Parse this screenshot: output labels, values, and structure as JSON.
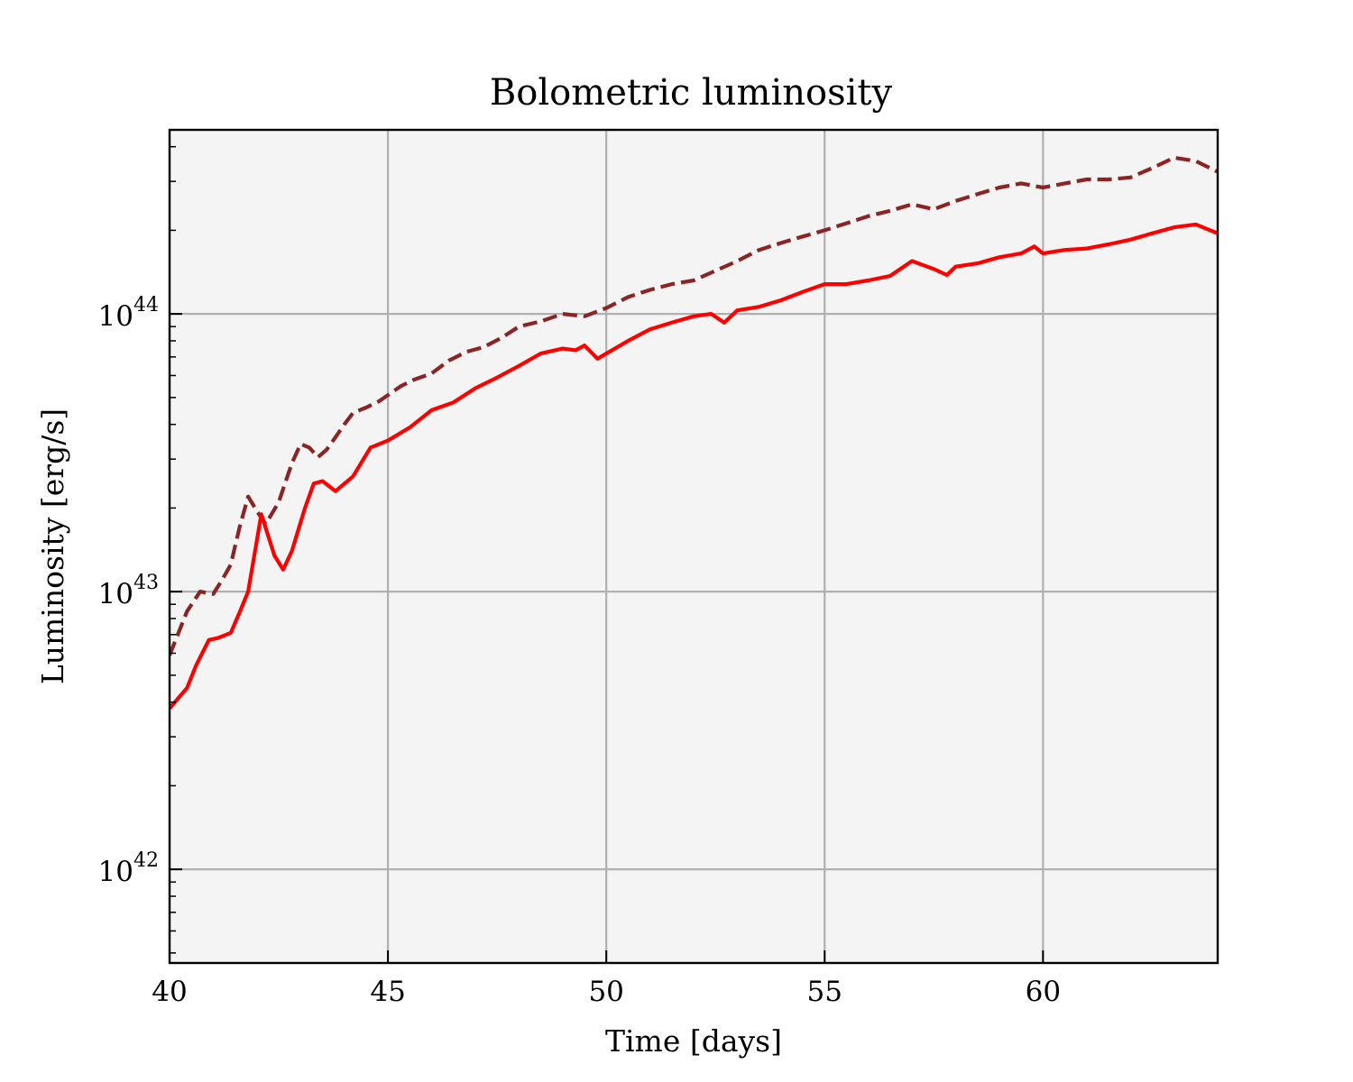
{
  "chart_data": {
    "type": "line",
    "title": "Bolometric luminosity",
    "xlabel": "Time [days]",
    "ylabel": "Luminosity [erg/s]",
    "xlim": [
      40,
      64
    ],
    "ylim": [
      4.6e+41,
      4.6e+44
    ],
    "yscale": "log",
    "grid": true,
    "x_ticks": [
      {
        "value": 40,
        "label": "40"
      },
      {
        "value": 45,
        "label": "45"
      },
      {
        "value": 50,
        "label": "50"
      },
      {
        "value": 55,
        "label": "55"
      },
      {
        "value": 60,
        "label": "60"
      }
    ],
    "y_ticks": [
      {
        "value": 1e+42,
        "base": "10",
        "exp": "42"
      },
      {
        "value": 1e+43,
        "base": "10",
        "exp": "43"
      },
      {
        "value": 1e+44,
        "base": "10",
        "exp": "44"
      }
    ],
    "colors": {
      "plot_background": "#f4f4f4",
      "grid": "#b0b0b0"
    },
    "series": [
      {
        "color": "#8b2525",
        "linestyle": "dashed",
        "x": [
          40,
          40.4,
          40.7,
          41,
          41.2,
          41.4,
          41.6,
          41.8,
          42,
          42.2,
          42.5,
          42.8,
          43,
          43.2,
          43.4,
          43.6,
          43.8,
          44,
          44.2,
          44.5,
          44.8,
          45,
          45.3,
          45.6,
          46,
          46.4,
          46.8,
          47.2,
          47.6,
          48,
          48.5,
          49,
          49.5,
          50,
          50.5,
          51,
          51.5,
          52,
          52.5,
          53,
          53.5,
          54,
          54.5,
          55,
          55.5,
          56,
          56.5,
          57,
          57.5,
          58,
          58.5,
          59,
          59.5,
          60,
          60.5,
          61,
          61.5,
          62,
          62.5,
          63,
          63.5,
          64
        ],
        "y": [
          5.9e+42,
          8.5e+42,
          1e+43,
          9.8e+42,
          1.1e+43,
          1.25e+43,
          1.7e+43,
          2.2e+43,
          1.95e+43,
          1.75e+43,
          2.1e+43,
          2.9e+43,
          3.4e+43,
          3.3e+43,
          3.05e+43,
          3.25e+43,
          3.6e+43,
          4e+43,
          4.4e+43,
          4.6e+43,
          4.85e+43,
          5.1e+43,
          5.5e+43,
          5.8e+43,
          6.1e+43,
          6.8e+43,
          7.3e+43,
          7.6e+43,
          8.2e+43,
          9e+43,
          9.4e+43,
          1e+44,
          9.8e+43,
          1.05e+44,
          1.15e+44,
          1.22e+44,
          1.28e+44,
          1.32e+44,
          1.43e+44,
          1.55e+44,
          1.7e+44,
          1.8e+44,
          1.9e+44,
          2e+44,
          2.12e+44,
          2.25e+44,
          2.35e+44,
          2.48e+44,
          2.38e+44,
          2.55e+44,
          2.7e+44,
          2.85e+44,
          2.95e+44,
          2.85e+44,
          2.95e+44,
          3.05e+44,
          3.05e+44,
          3.1e+44,
          3.35e+44,
          3.65e+44,
          3.55e+44,
          3.25e+44
        ]
      },
      {
        "color": "#ff0000",
        "linestyle": "solid",
        "x": [
          40,
          40.4,
          40.6,
          40.9,
          41.1,
          41.4,
          41.6,
          41.8,
          42.1,
          42.4,
          42.6,
          42.8,
          43.1,
          43.3,
          43.5,
          43.8,
          44.2,
          44.6,
          45,
          45.5,
          46,
          46.5,
          47,
          47.5,
          48,
          48.5,
          49,
          49.3,
          49.5,
          49.8,
          50,
          50.5,
          51,
          51.5,
          52,
          52.4,
          52.7,
          53,
          53.5,
          54,
          54.5,
          55,
          55.5,
          56,
          56.5,
          57,
          57.5,
          57.8,
          58,
          58.5,
          59,
          59.5,
          59.8,
          60,
          60.5,
          61,
          61.5,
          62,
          62.5,
          63,
          63.5,
          64
        ],
        "y": [
          3.8e+42,
          4.5e+42,
          5.4e+42,
          6.7e+42,
          6.8e+42,
          7.1e+42,
          8.4e+42,
          1e+43,
          1.9e+43,
          1.35e+43,
          1.2e+43,
          1.4e+43,
          2e+43,
          2.45e+43,
          2.5e+43,
          2.3e+43,
          2.6e+43,
          3.3e+43,
          3.5e+43,
          3.9e+43,
          4.5e+43,
          4.8e+43,
          5.4e+43,
          5.9e+43,
          6.5e+43,
          7.2e+43,
          7.5e+43,
          7.4e+43,
          7.7e+43,
          6.9e+43,
          7.2e+43,
          8e+43,
          8.8e+43,
          9.3e+43,
          9.8e+43,
          1e+44,
          9.3e+43,
          1.03e+44,
          1.06e+44,
          1.12e+44,
          1.2e+44,
          1.28e+44,
          1.28e+44,
          1.32e+44,
          1.37e+44,
          1.55e+44,
          1.45e+44,
          1.38e+44,
          1.48e+44,
          1.52e+44,
          1.6e+44,
          1.65e+44,
          1.75e+44,
          1.65e+44,
          1.7e+44,
          1.72e+44,
          1.78e+44,
          1.85e+44,
          1.95e+44,
          2.05e+44,
          2.1e+44,
          1.95e+44
        ]
      }
    ]
  }
}
